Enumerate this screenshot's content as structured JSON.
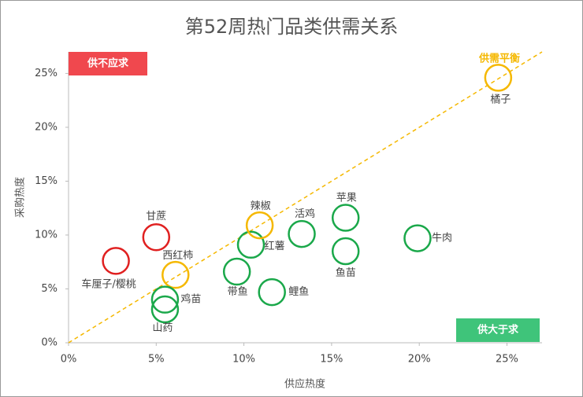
{
  "chart_data": {
    "type": "scatter",
    "title": "第52周热门品类供需关系",
    "x_label": "供应热度",
    "y_label": "采购热度",
    "xlim": [
      0,
      27
    ],
    "ylim": [
      0,
      27
    ],
    "xticks": [
      {
        "value": 0,
        "label": "0%"
      },
      {
        "value": 5,
        "label": "5%"
      },
      {
        "value": 10,
        "label": "10%"
      },
      {
        "value": 15,
        "label": "15%"
      },
      {
        "value": 20,
        "label": "20%"
      },
      {
        "value": 25,
        "label": "25%"
      }
    ],
    "yticks": [
      {
        "value": 0,
        "label": "0%"
      },
      {
        "value": 5,
        "label": "5%"
      },
      {
        "value": 10,
        "label": "10%"
      },
      {
        "value": 15,
        "label": "15%"
      },
      {
        "value": 20,
        "label": "20%"
      },
      {
        "value": 25,
        "label": "25%"
      }
    ],
    "points": [
      {
        "name": "甘蔗",
        "x": 5.0,
        "y": 9.8,
        "color": "#e02020"
      },
      {
        "name": "车厘子/樱桃",
        "x": 2.7,
        "y": 7.6,
        "color": "#e02020"
      },
      {
        "name": "西红柿",
        "x": 6.1,
        "y": 6.3,
        "color": "#f5b800"
      },
      {
        "name": "鸡苗",
        "x": 5.5,
        "y": 4.0,
        "color": "#1aa84a"
      },
      {
        "name": "山药",
        "x": 5.5,
        "y": 3.1,
        "color": "#1aa84a"
      },
      {
        "name": "带鱼",
        "x": 9.6,
        "y": 6.6,
        "color": "#1aa84a"
      },
      {
        "name": "红薯",
        "x": 10.4,
        "y": 9.1,
        "color": "#1aa84a"
      },
      {
        "name": "辣椒",
        "x": 10.9,
        "y": 10.9,
        "color": "#f5b800"
      },
      {
        "name": "鲤鱼",
        "x": 11.6,
        "y": 4.7,
        "color": "#1aa84a"
      },
      {
        "name": "活鸡",
        "x": 13.3,
        "y": 10.1,
        "color": "#1aa84a"
      },
      {
        "name": "苹果",
        "x": 15.8,
        "y": 11.6,
        "color": "#1aa84a"
      },
      {
        "name": "鱼苗",
        "x": 15.8,
        "y": 8.5,
        "color": "#1aa84a"
      },
      {
        "name": "牛肉",
        "x": 19.9,
        "y": 9.7,
        "color": "#1aa84a"
      },
      {
        "name": "橘子",
        "x": 24.5,
        "y": 24.6,
        "color": "#f5b800"
      }
    ],
    "annotations": {
      "shortage": "供不应求",
      "surplus": "供大于求",
      "balance": "供需平衡"
    },
    "balance_color": "#f5b800",
    "shortage_color": "#f0484e",
    "surplus_color": "#3fc47a"
  }
}
